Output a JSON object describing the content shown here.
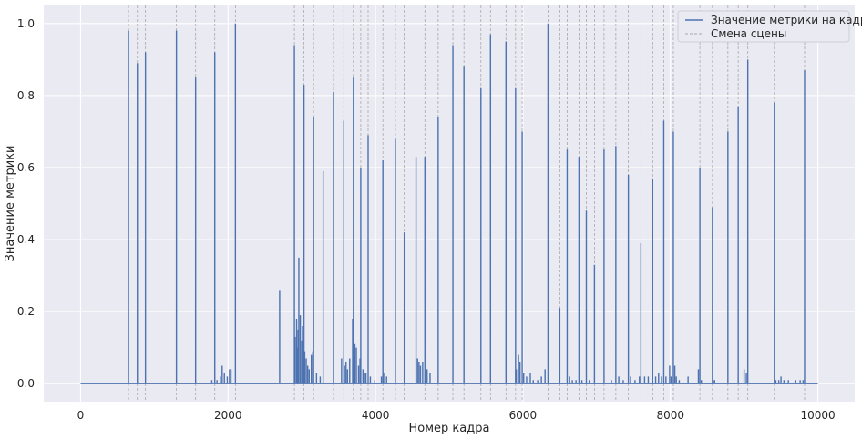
{
  "chart_data": {
    "type": "line",
    "xlabel": "Номер кадра",
    "ylabel": "Значение метрики",
    "xlim": [
      -500,
      10500
    ],
    "ylim": [
      -0.05,
      1.05
    ],
    "xticks": [
      0,
      2000,
      4000,
      6000,
      8000,
      10000
    ],
    "yticks": [
      0.0,
      0.2,
      0.4,
      0.6,
      0.8,
      1.0
    ],
    "xtick_labels": [
      "0",
      "2000",
      "4000",
      "6000",
      "8000",
      "10000"
    ],
    "ytick_labels": [
      "0.0",
      "0.2",
      "0.4",
      "0.6",
      "0.8",
      "1.0"
    ],
    "grid": true,
    "legend_position": "top-right",
    "legend": {
      "series": "Значение метрики на кадрах",
      "scene_change": "Смена сцены"
    },
    "colors": {
      "series": "#4c72b0",
      "scene_change": "#a8a8a8",
      "background": "#eaeaf2",
      "grid": "#ffffff"
    },
    "x_range": [
      0,
      10000
    ],
    "spikes": [
      {
        "x": 650,
        "y": 0.98
      },
      {
        "x": 770,
        "y": 0.89
      },
      {
        "x": 880,
        "y": 0.92
      },
      {
        "x": 1300,
        "y": 0.98
      },
      {
        "x": 1560,
        "y": 0.85
      },
      {
        "x": 1820,
        "y": 0.92
      },
      {
        "x": 2100,
        "y": 1.0
      },
      {
        "x": 2700,
        "y": 0.26
      },
      {
        "x": 2900,
        "y": 0.94
      },
      {
        "x": 2960,
        "y": 0.35
      },
      {
        "x": 3030,
        "y": 0.83
      },
      {
        "x": 3160,
        "y": 0.74
      },
      {
        "x": 3290,
        "y": 0.59
      },
      {
        "x": 3430,
        "y": 0.81
      },
      {
        "x": 3570,
        "y": 0.73
      },
      {
        "x": 3700,
        "y": 0.85
      },
      {
        "x": 3800,
        "y": 0.6
      },
      {
        "x": 3900,
        "y": 0.69
      },
      {
        "x": 4100,
        "y": 0.62
      },
      {
        "x": 4270,
        "y": 0.68
      },
      {
        "x": 4390,
        "y": 0.42
      },
      {
        "x": 4550,
        "y": 0.63
      },
      {
        "x": 4670,
        "y": 0.63
      },
      {
        "x": 4850,
        "y": 0.74
      },
      {
        "x": 5050,
        "y": 0.94
      },
      {
        "x": 5200,
        "y": 0.88
      },
      {
        "x": 5430,
        "y": 0.82
      },
      {
        "x": 5560,
        "y": 0.97
      },
      {
        "x": 5770,
        "y": 0.95
      },
      {
        "x": 5900,
        "y": 0.82
      },
      {
        "x": 5990,
        "y": 0.7
      },
      {
        "x": 6340,
        "y": 1.0
      },
      {
        "x": 6500,
        "y": 0.21
      },
      {
        "x": 6600,
        "y": 0.65
      },
      {
        "x": 6760,
        "y": 0.63
      },
      {
        "x": 6860,
        "y": 0.48
      },
      {
        "x": 6970,
        "y": 0.33
      },
      {
        "x": 7100,
        "y": 0.65
      },
      {
        "x": 7260,
        "y": 0.66
      },
      {
        "x": 7430,
        "y": 0.58
      },
      {
        "x": 7600,
        "y": 0.39
      },
      {
        "x": 7760,
        "y": 0.57
      },
      {
        "x": 7910,
        "y": 0.73
      },
      {
        "x": 8040,
        "y": 0.7
      },
      {
        "x": 8400,
        "y": 0.6
      },
      {
        "x": 8570,
        "y": 0.49
      },
      {
        "x": 8780,
        "y": 0.7
      },
      {
        "x": 8920,
        "y": 0.77
      },
      {
        "x": 9050,
        "y": 0.9
      },
      {
        "x": 9410,
        "y": 0.78
      },
      {
        "x": 9820,
        "y": 0.87
      }
    ],
    "noise": [
      {
        "x": 1780,
        "y": 0.01
      },
      {
        "x": 1850,
        "y": 0.01
      },
      {
        "x": 1900,
        "y": 0.02
      },
      {
        "x": 1920,
        "y": 0.05
      },
      {
        "x": 1950,
        "y": 0.03
      },
      {
        "x": 1990,
        "y": 0.02
      },
      {
        "x": 2020,
        "y": 0.04
      },
      {
        "x": 2040,
        "y": 0.04
      },
      {
        "x": 2910,
        "y": 0.13
      },
      {
        "x": 2930,
        "y": 0.18
      },
      {
        "x": 2940,
        "y": 0.1
      },
      {
        "x": 2950,
        "y": 0.15
      },
      {
        "x": 2980,
        "y": 0.19
      },
      {
        "x": 3000,
        "y": 0.12
      },
      {
        "x": 3010,
        "y": 0.16
      },
      {
        "x": 3040,
        "y": 0.09
      },
      {
        "x": 3060,
        "y": 0.07
      },
      {
        "x": 3080,
        "y": 0.05
      },
      {
        "x": 3100,
        "y": 0.04
      },
      {
        "x": 3130,
        "y": 0.08
      },
      {
        "x": 3150,
        "y": 0.09
      },
      {
        "x": 3200,
        "y": 0.03
      },
      {
        "x": 3250,
        "y": 0.02
      },
      {
        "x": 3540,
        "y": 0.07
      },
      {
        "x": 3580,
        "y": 0.05
      },
      {
        "x": 3600,
        "y": 0.06
      },
      {
        "x": 3620,
        "y": 0.04
      },
      {
        "x": 3650,
        "y": 0.07
      },
      {
        "x": 3690,
        "y": 0.18
      },
      {
        "x": 3720,
        "y": 0.11
      },
      {
        "x": 3740,
        "y": 0.1
      },
      {
        "x": 3770,
        "y": 0.05
      },
      {
        "x": 3790,
        "y": 0.07
      },
      {
        "x": 3830,
        "y": 0.04
      },
      {
        "x": 3850,
        "y": 0.03
      },
      {
        "x": 3870,
        "y": 0.03
      },
      {
        "x": 3930,
        "y": 0.02
      },
      {
        "x": 3990,
        "y": 0.01
      },
      {
        "x": 4080,
        "y": 0.02
      },
      {
        "x": 4110,
        "y": 0.03
      },
      {
        "x": 4150,
        "y": 0.02
      },
      {
        "x": 4570,
        "y": 0.07
      },
      {
        "x": 4590,
        "y": 0.06
      },
      {
        "x": 4610,
        "y": 0.05
      },
      {
        "x": 4640,
        "y": 0.06
      },
      {
        "x": 4700,
        "y": 0.04
      },
      {
        "x": 4740,
        "y": 0.03
      },
      {
        "x": 5910,
        "y": 0.04
      },
      {
        "x": 5940,
        "y": 0.08
      },
      {
        "x": 5960,
        "y": 0.06
      },
      {
        "x": 6010,
        "y": 0.03
      },
      {
        "x": 6050,
        "y": 0.02
      },
      {
        "x": 6100,
        "y": 0.03
      },
      {
        "x": 6140,
        "y": 0.01
      },
      {
        "x": 6200,
        "y": 0.01
      },
      {
        "x": 6250,
        "y": 0.02
      },
      {
        "x": 6300,
        "y": 0.04
      },
      {
        "x": 6630,
        "y": 0.02
      },
      {
        "x": 6670,
        "y": 0.01
      },
      {
        "x": 6720,
        "y": 0.01
      },
      {
        "x": 6800,
        "y": 0.01
      },
      {
        "x": 6900,
        "y": 0.01
      },
      {
        "x": 7200,
        "y": 0.01
      },
      {
        "x": 7300,
        "y": 0.02
      },
      {
        "x": 7360,
        "y": 0.01
      },
      {
        "x": 7460,
        "y": 0.02
      },
      {
        "x": 7520,
        "y": 0.01
      },
      {
        "x": 7580,
        "y": 0.02
      },
      {
        "x": 7650,
        "y": 0.02
      },
      {
        "x": 7700,
        "y": 0.02
      },
      {
        "x": 7800,
        "y": 0.02
      },
      {
        "x": 7840,
        "y": 0.03
      },
      {
        "x": 7880,
        "y": 0.02
      },
      {
        "x": 7940,
        "y": 0.02
      },
      {
        "x": 7990,
        "y": 0.05
      },
      {
        "x": 8010,
        "y": 0.02
      },
      {
        "x": 8060,
        "y": 0.05
      },
      {
        "x": 8080,
        "y": 0.02
      },
      {
        "x": 8120,
        "y": 0.01
      },
      {
        "x": 8240,
        "y": 0.02
      },
      {
        "x": 8380,
        "y": 0.04
      },
      {
        "x": 8420,
        "y": 0.01
      },
      {
        "x": 8580,
        "y": 0.01
      },
      {
        "x": 8600,
        "y": 0.01
      },
      {
        "x": 9000,
        "y": 0.04
      },
      {
        "x": 9030,
        "y": 0.03
      },
      {
        "x": 9430,
        "y": 0.01
      },
      {
        "x": 9470,
        "y": 0.01
      },
      {
        "x": 9500,
        "y": 0.02
      },
      {
        "x": 9540,
        "y": 0.01
      },
      {
        "x": 9600,
        "y": 0.01
      },
      {
        "x": 9700,
        "y": 0.01
      },
      {
        "x": 9760,
        "y": 0.01
      },
      {
        "x": 9800,
        "y": 0.01
      }
    ],
    "scene_changes": [
      650,
      770,
      880,
      1300,
      1560,
      1820,
      2100,
      2900,
      3030,
      3160,
      3430,
      3570,
      3700,
      3800,
      3900,
      4100,
      4270,
      4390,
      4550,
      4670,
      4850,
      5050,
      5200,
      5430,
      5560,
      5770,
      5900,
      5990,
      6340,
      6500,
      6600,
      6760,
      6860,
      6970,
      7100,
      7260,
      7430,
      7600,
      7760,
      7910,
      8040,
      8400,
      8570,
      8780,
      8920,
      9050,
      9410,
      9820
    ]
  }
}
